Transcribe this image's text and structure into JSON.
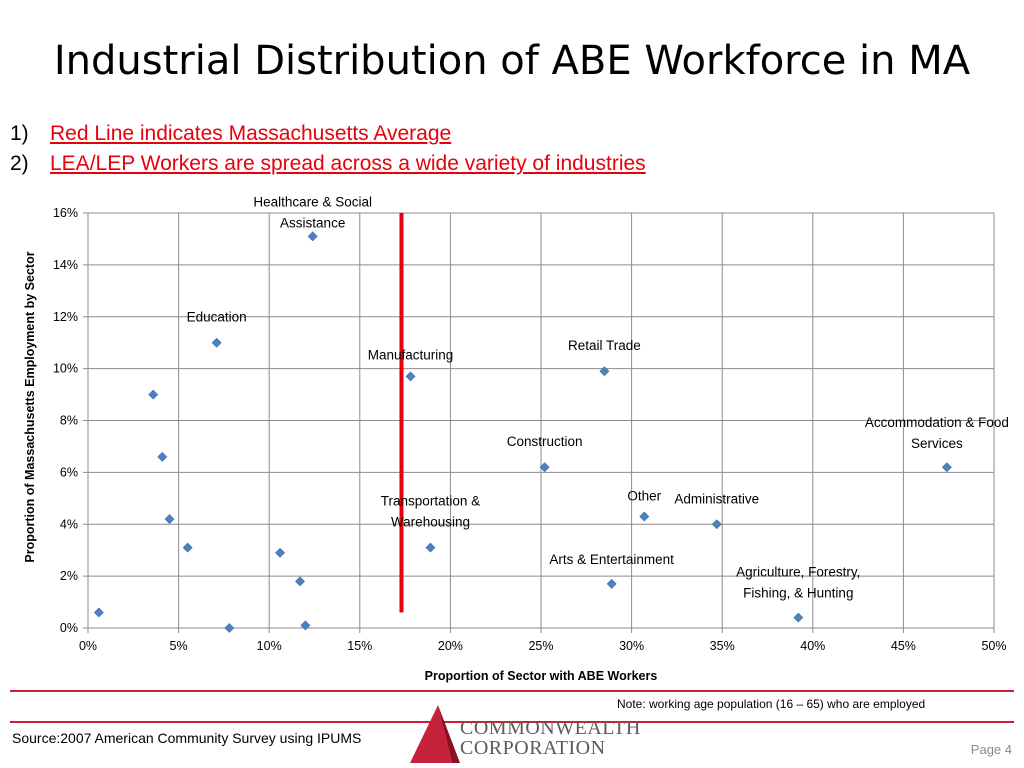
{
  "slide": {
    "title": "Industrial Distribution of ABE Workforce in MA",
    "bullets": [
      {
        "num": "1)",
        "text": "Red Line indicates Massachusetts Average"
      },
      {
        "num": "2)",
        "text": "LEA/LEP Workers are spread across a wide variety of industries"
      }
    ],
    "note": "Note: working age population (16 – 65) who are employed",
    "source": "Source:2007 American Community Survey using IPUMS",
    "logo_line1": "COMMONWEALTH",
    "logo_line2": "CORPORATION",
    "page": "Page 4",
    "colors": {
      "accent_red": "#e8000b",
      "rule": "#c7203a",
      "marker": "#4f81bd"
    }
  },
  "chart_data": {
    "type": "scatter",
    "xlabel": "Proportion of Sector with ABE Workers",
    "ylabel": "Proportion of Massachusetts Employment by Sector",
    "xlim": [
      0,
      0.5
    ],
    "ylim": [
      0,
      0.16
    ],
    "x_ticks": [
      "0%",
      "5%",
      "10%",
      "15%",
      "20%",
      "25%",
      "30%",
      "35%",
      "40%",
      "45%",
      "50%"
    ],
    "y_ticks": [
      "0%",
      "2%",
      "4%",
      "6%",
      "8%",
      "10%",
      "12%",
      "14%",
      "16%"
    ],
    "grid": true,
    "reference_line": {
      "x": 0.173,
      "y_range": [
        0.006,
        0.16
      ],
      "color": "#e8000b"
    },
    "points": [
      {
        "x": 0.124,
        "y": 0.151,
        "label": "Healthcare & Social Assistance",
        "label_lines": [
          "Healthcare & Social",
          "Assistance"
        ]
      },
      {
        "x": 0.071,
        "y": 0.11,
        "label": "Education",
        "label_lines": [
          "Education"
        ]
      },
      {
        "x": 0.178,
        "y": 0.097,
        "label": "Manufacturing",
        "label_lines": [
          "Manufacturing"
        ]
      },
      {
        "x": 0.285,
        "y": 0.099,
        "label": "Retail Trade",
        "label_lines": [
          "Retail Trade"
        ]
      },
      {
        "x": 0.474,
        "y": 0.062,
        "label": "Accommodation & Food Services",
        "label_lines": [
          "Accommodation & Food",
          "Services"
        ]
      },
      {
        "x": 0.252,
        "y": 0.062,
        "label": "Construction",
        "label_lines": [
          "Construction"
        ]
      },
      {
        "x": 0.307,
        "y": 0.043,
        "label": "Other",
        "label_lines": [
          "Other"
        ]
      },
      {
        "x": 0.347,
        "y": 0.04,
        "label": "Administrative",
        "label_lines": [
          "Administrative"
        ]
      },
      {
        "x": 0.189,
        "y": 0.031,
        "label": "Transportation & Warehousing",
        "label_lines": [
          "Transportation &",
          "Warehousing"
        ]
      },
      {
        "x": 0.289,
        "y": 0.017,
        "label": "Arts & Entertainment",
        "label_lines": [
          "Arts & Entertainment"
        ]
      },
      {
        "x": 0.392,
        "y": 0.004,
        "label": "Agriculture, Forestry, Fishing, & Hunting",
        "label_lines": [
          "Agriculture, Forestry,",
          "Fishing, & Hunting"
        ]
      },
      {
        "x": 0.036,
        "y": 0.09,
        "label": ""
      },
      {
        "x": 0.041,
        "y": 0.066,
        "label": ""
      },
      {
        "x": 0.045,
        "y": 0.042,
        "label": ""
      },
      {
        "x": 0.055,
        "y": 0.031,
        "label": ""
      },
      {
        "x": 0.106,
        "y": 0.029,
        "label": ""
      },
      {
        "x": 0.117,
        "y": 0.018,
        "label": ""
      },
      {
        "x": 0.006,
        "y": 0.006,
        "label": ""
      },
      {
        "x": 0.078,
        "y": 0.0,
        "label": ""
      },
      {
        "x": 0.12,
        "y": 0.001,
        "label": ""
      }
    ]
  }
}
